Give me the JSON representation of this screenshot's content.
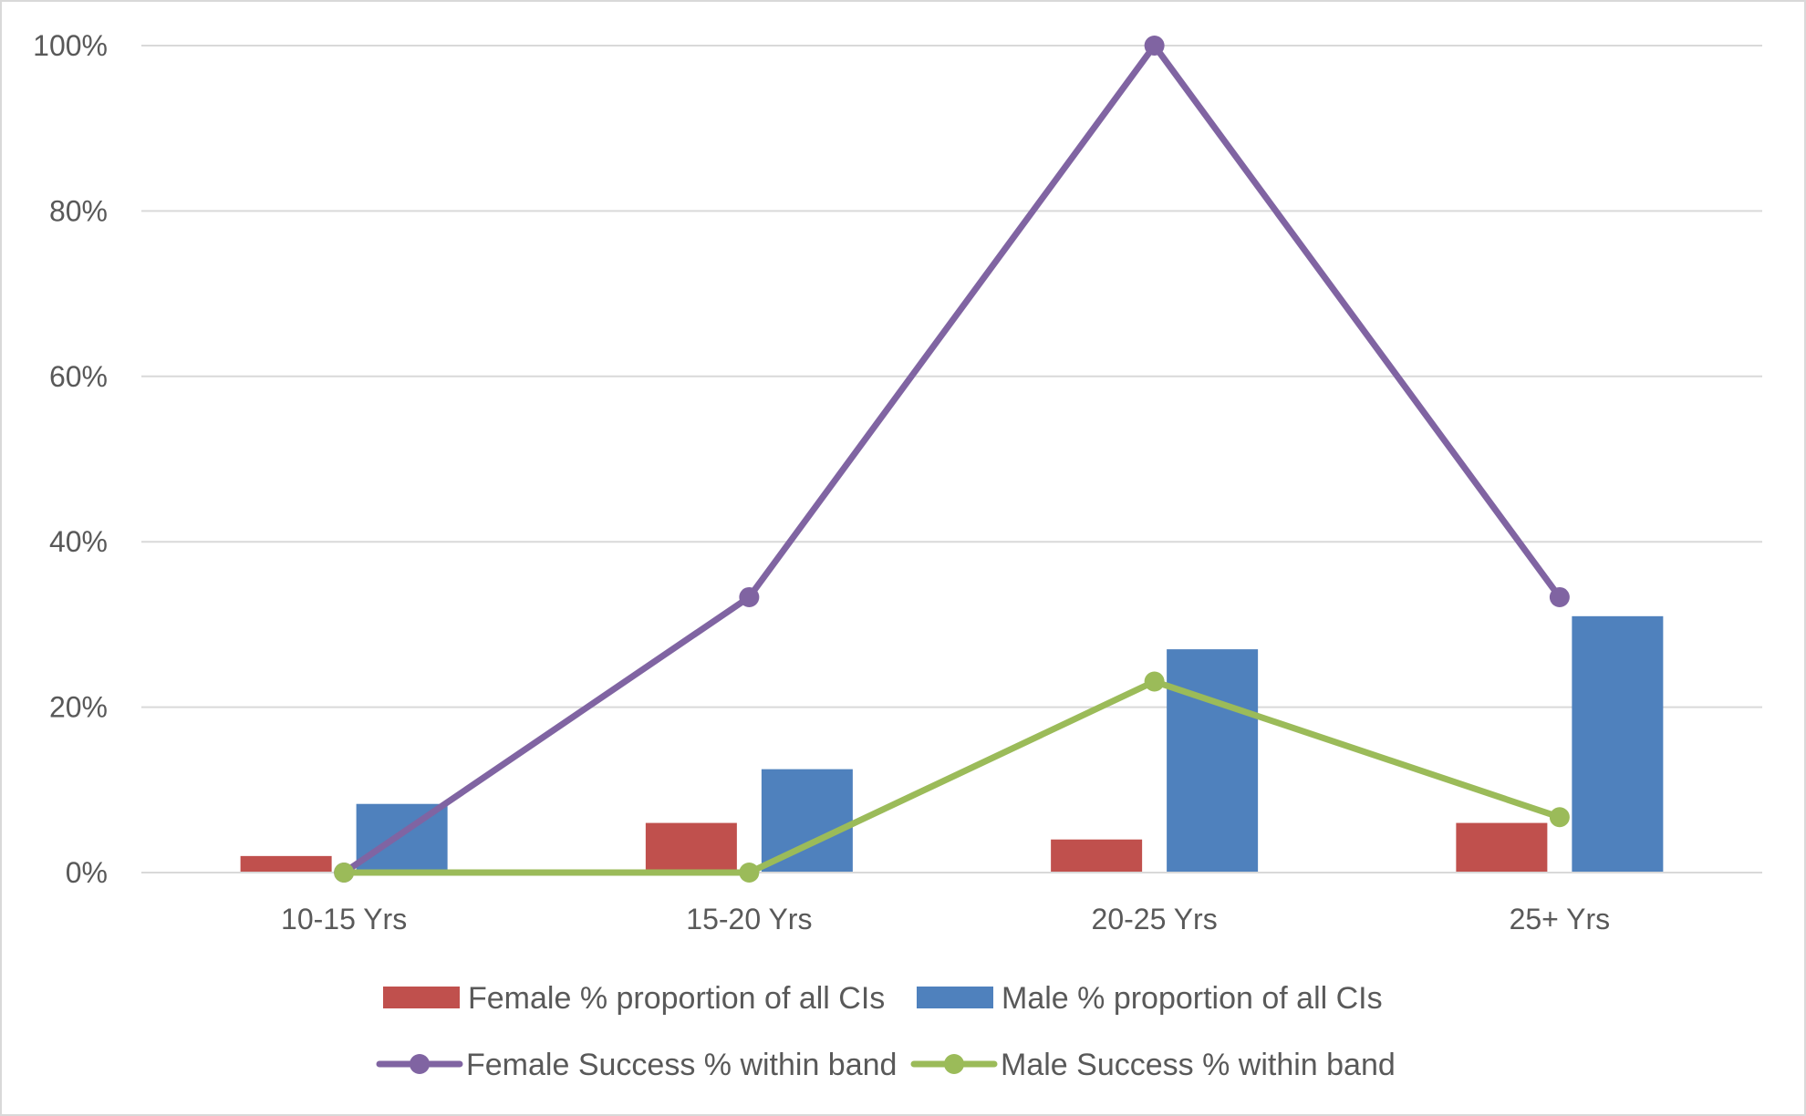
{
  "chart_data": {
    "type": "bar",
    "categories": [
      "10-15 Yrs",
      "15-20 Yrs",
      "20-25 Yrs",
      "25+ Yrs"
    ],
    "ylim": [
      0,
      100
    ],
    "y_ticks": [
      0,
      20,
      40,
      60,
      80,
      100
    ],
    "y_tick_labels": [
      "0%",
      "20%",
      "40%",
      "60%",
      "80%",
      "100%"
    ],
    "grid": "horizontal",
    "legend_position": "bottom",
    "series": [
      {
        "name": "Female % proportion of all CIs",
        "type": "bar",
        "color": "#c0504d",
        "values": [
          2,
          6,
          4,
          6
        ]
      },
      {
        "name": "Male % proportion of all CIs",
        "type": "bar",
        "color": "#4f81bd",
        "values": [
          8.3,
          12.5,
          27,
          31
        ]
      },
      {
        "name": "Female Success % within band",
        "type": "line",
        "color": "#8064a2",
        "values": [
          0,
          33.3,
          100,
          33.3
        ]
      },
      {
        "name": "Male Success % within band",
        "type": "line",
        "color": "#9bbb59",
        "values": [
          0,
          0,
          23.1,
          6.7
        ]
      }
    ]
  }
}
